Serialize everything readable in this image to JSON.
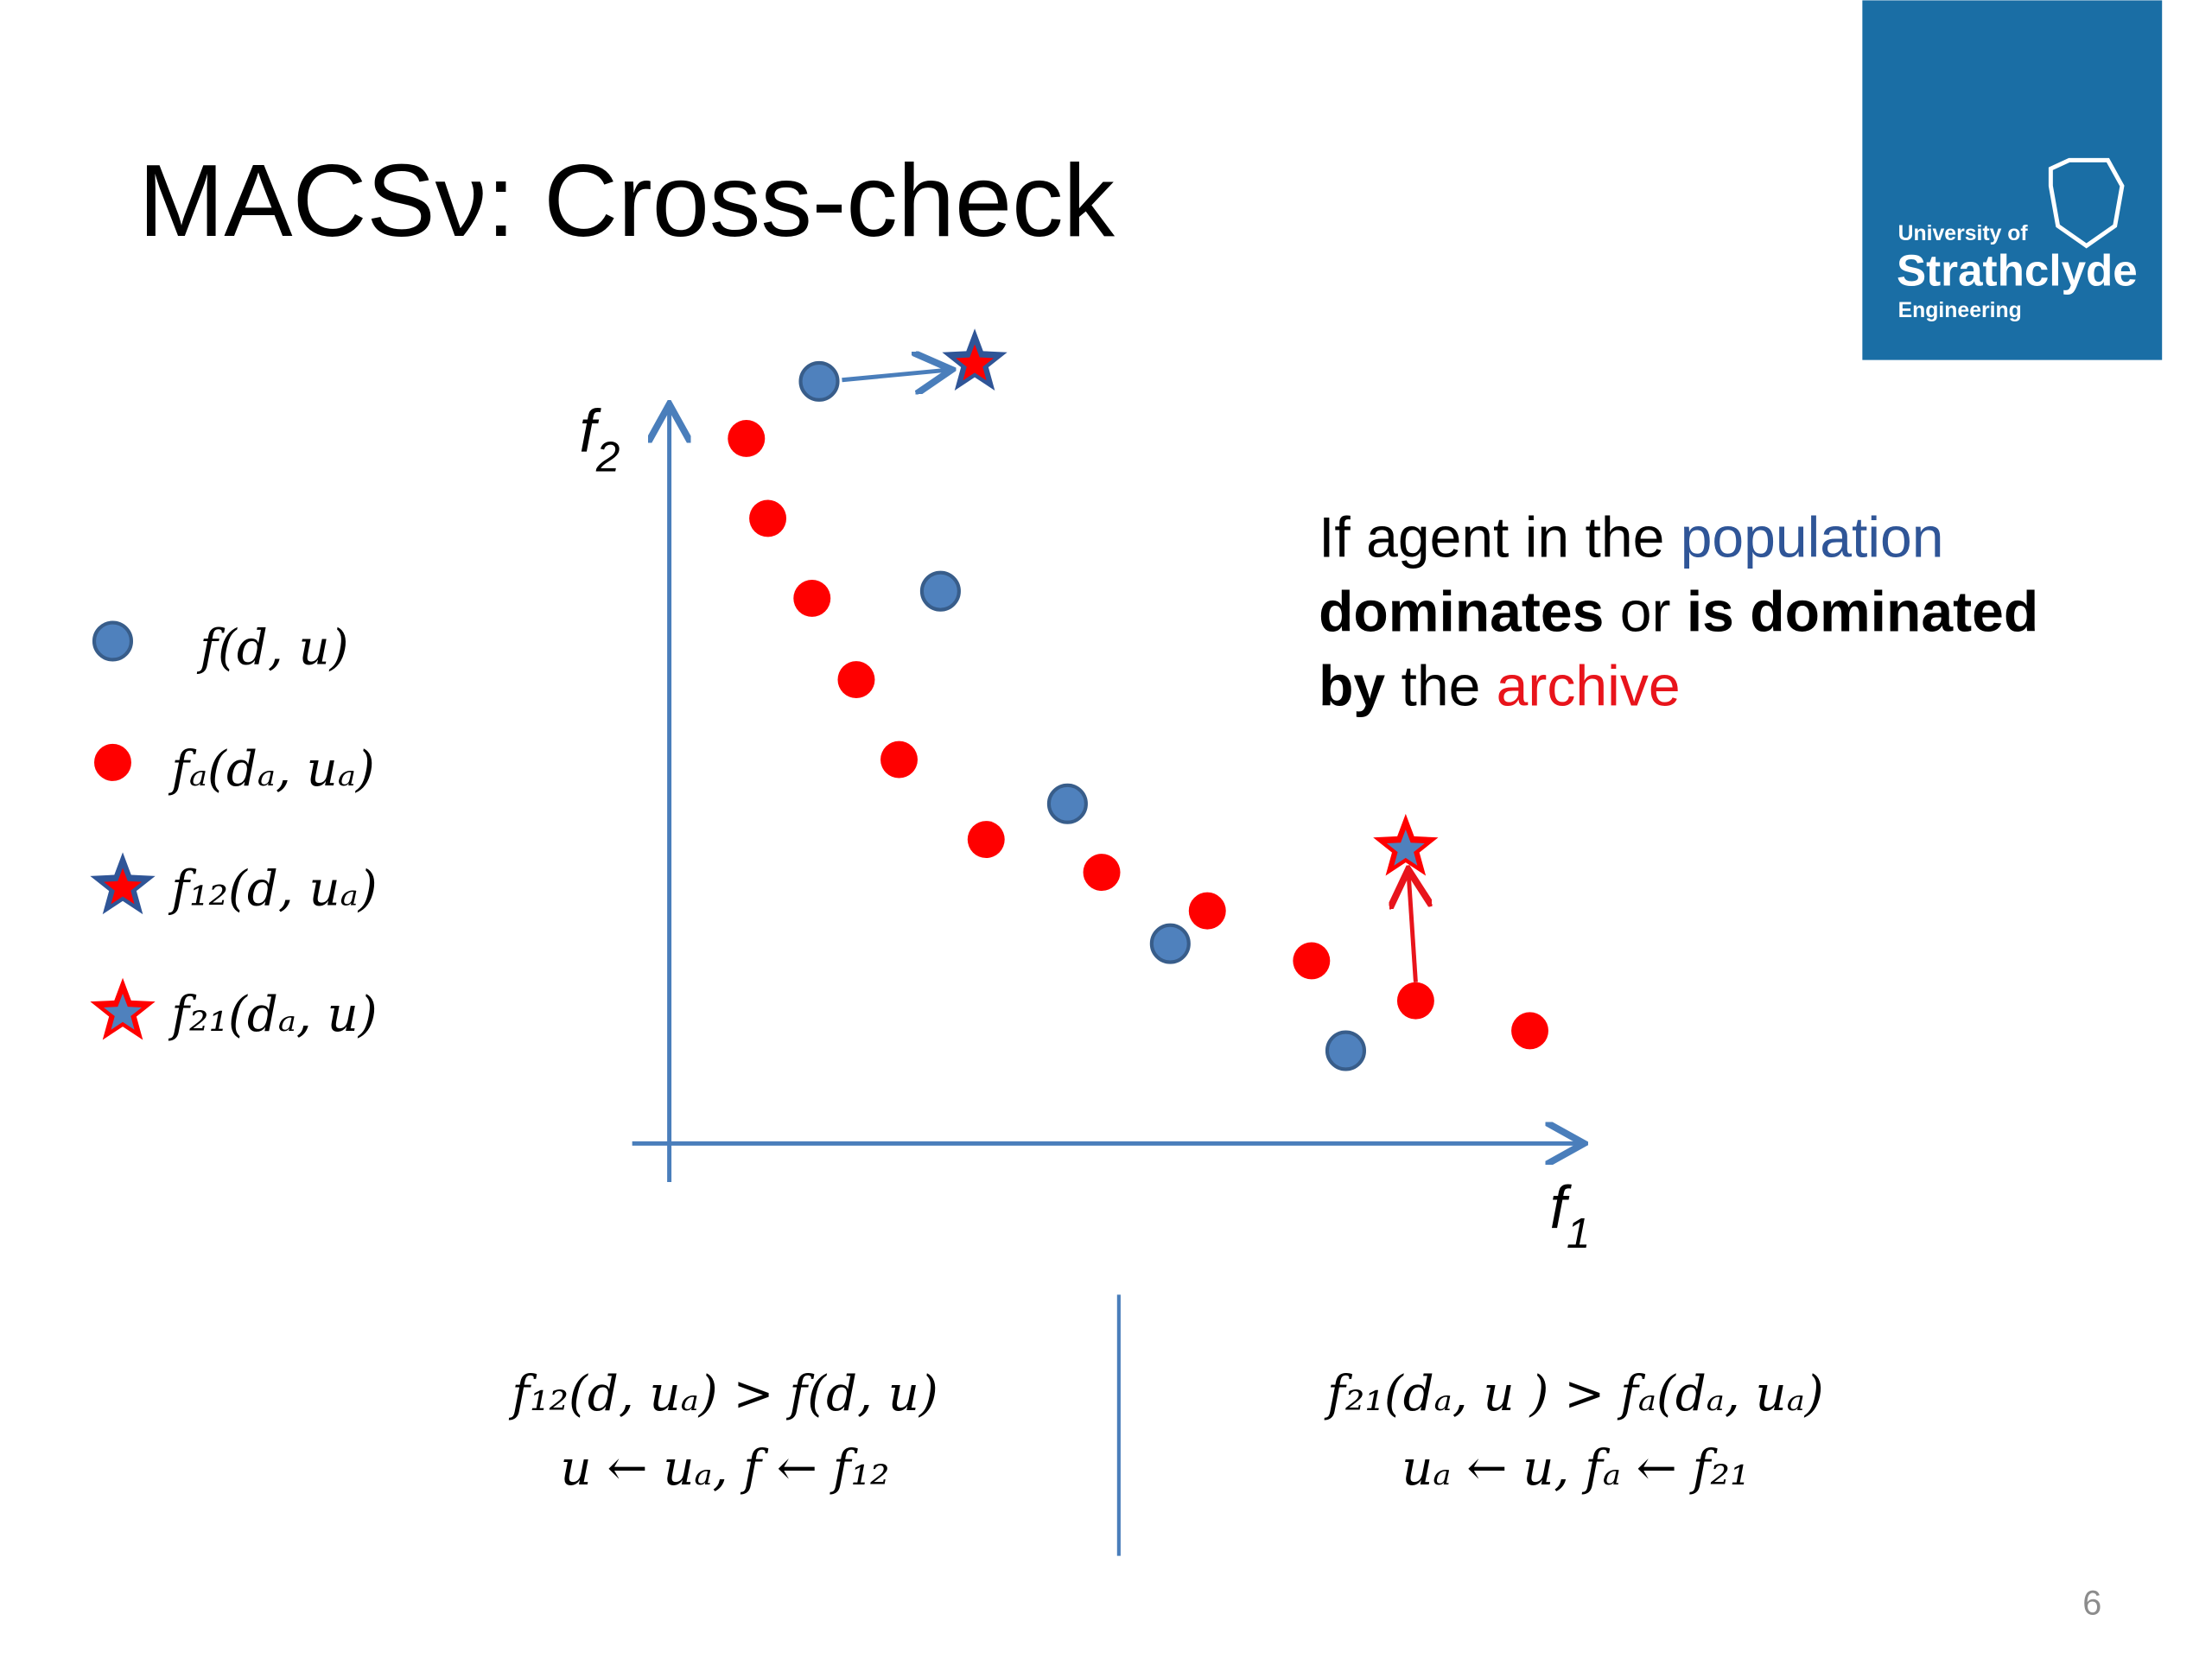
{
  "header": {
    "title": "MACSν: Cross-check"
  },
  "logo": {
    "line1": "University of",
    "line2": "Strathclyde",
    "line3": "Engineering"
  },
  "axes": {
    "y_label": "f",
    "y_sub": "2",
    "x_label": "f",
    "x_sub": "1"
  },
  "legend": [
    "f(d, u)",
    "fₐ(dₐ, uₐ)",
    "f₁₂(d, uₐ)",
    "f₂₁(dₐ, u)"
  ],
  "annotation": [
    "If agent in the ",
    "population",
    "dominates",
    " or ",
    "is dominated",
    "by",
    " the ",
    "archive"
  ],
  "formulas": {
    "left": [
      "f₁₂(d, uₐ) > f(d, u)",
      "u ← uₐ, f ← f₁₂"
    ],
    "right": [
      "f₂₁(dₐ, u ) > fₐ(dₐ, uₐ)",
      "uₐ ← u, fₐ ← f₂₁"
    ]
  },
  "page_number": "6"
}
